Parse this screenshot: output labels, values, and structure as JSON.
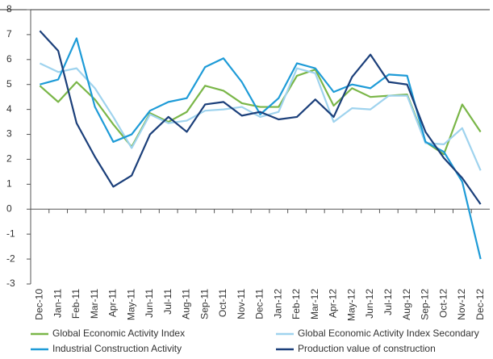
{
  "chart_data": {
    "type": "line",
    "categories": [
      "Dec-10",
      "Jan-11",
      "Feb-11",
      "Mar-11",
      "Apr-11",
      "May-11",
      "Jun-11",
      "Jul-11",
      "Aug-11",
      "Sep-11",
      "Oct-11",
      "Nov-11",
      "Dec-11",
      "Jan-12",
      "Feb-12",
      "Mar-12",
      "Apr-12",
      "May-12",
      "Jun-12",
      "Jul-12",
      "Aug-12",
      "Sep-12",
      "Oct-12",
      "Nov-12",
      "Dec-12"
    ],
    "series": [
      {
        "name": "Global Economic Activity Index",
        "color": "#7ab648",
        "values": [
          4.95,
          4.3,
          5.1,
          4.4,
          3.4,
          2.5,
          3.85,
          3.5,
          3.9,
          4.95,
          4.75,
          4.25,
          4.1,
          4.1,
          5.35,
          5.6,
          4.15,
          4.85,
          4.5,
          4.55,
          4.6,
          2.7,
          2.2,
          4.2,
          3.1
        ]
      },
      {
        "name": "Global Economic Activity Index Secondary",
        "color": "#9fd3ee",
        "values": [
          5.85,
          5.5,
          5.65,
          4.85,
          3.7,
          2.45,
          3.8,
          3.45,
          3.55,
          3.95,
          4.0,
          4.1,
          3.7,
          3.9,
          5.65,
          5.45,
          3.5,
          4.05,
          4.0,
          4.55,
          4.55,
          2.65,
          2.6,
          3.25,
          1.55
        ]
      },
      {
        "name": "Industrial Construction Activity",
        "color": "#1e9bd7",
        "values": [
          5.0,
          5.2,
          6.85,
          4.1,
          2.7,
          3.0,
          3.95,
          4.3,
          4.45,
          5.7,
          6.05,
          5.1,
          3.8,
          4.45,
          5.85,
          5.65,
          4.7,
          5.0,
          4.85,
          5.4,
          5.35,
          2.7,
          2.3,
          1.1,
          -2.0
        ]
      },
      {
        "name": "Production value of construction",
        "color": "#1b3f7a",
        "values": [
          7.15,
          6.35,
          3.45,
          2.1,
          0.9,
          1.35,
          3.0,
          3.7,
          3.1,
          4.2,
          4.3,
          3.75,
          3.9,
          3.6,
          3.7,
          4.4,
          3.7,
          5.3,
          6.2,
          5.1,
          5.0,
          3.1,
          2.05,
          1.25,
          0.2
        ]
      }
    ],
    "ylim": [
      -3,
      8
    ],
    "yticks": [
      -3,
      -2,
      -1,
      0,
      1,
      2,
      3,
      4,
      5,
      6,
      7,
      8
    ],
    "legend": "bottom"
  }
}
